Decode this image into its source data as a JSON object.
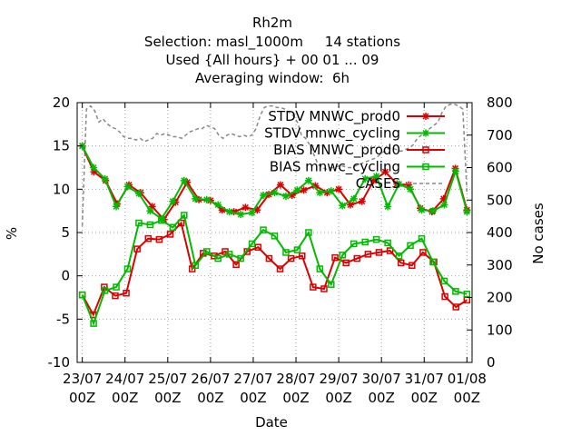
{
  "chart_data": {
    "type": "line",
    "title": "Rh2m",
    "subtitle_lines": [
      "Selection: masl_1000m     14 stations",
      "Used {All hours} + 00 01 ... 09",
      "Averaging window:  6h"
    ],
    "xlabel": "Date",
    "ylabel": "%",
    "y2label": "No cases",
    "ylim": [
      -10,
      20
    ],
    "y2lim": [
      0,
      800
    ],
    "yticks": [
      -10,
      -5,
      0,
      5,
      10,
      15,
      20
    ],
    "y2ticks": [
      0,
      100,
      200,
      300,
      400,
      500,
      600,
      700,
      800
    ],
    "xlim": [
      -0.12,
      9.12
    ],
    "xticks": [
      {
        "line1": "23/07",
        "line2": "00Z"
      },
      {
        "line1": "24/07",
        "line2": "00Z"
      },
      {
        "line1": "25/07",
        "line2": "00Z"
      },
      {
        "line1": "26/07",
        "line2": "00Z"
      },
      {
        "line1": "27/07",
        "line2": "00Z"
      },
      {
        "line1": "28/07",
        "line2": "00Z"
      },
      {
        "line1": "29/07",
        "line2": "00Z"
      },
      {
        "line1": "30/07",
        "line2": "00Z"
      },
      {
        "line1": "31/07",
        "line2": "00Z"
      },
      {
        "line1": "01/08",
        "line2": "00Z"
      }
    ],
    "grid": true,
    "legend_position": "top-right",
    "series": [
      {
        "name": "STDV MNWC_prod0",
        "color": "#dd0000",
        "marker": "star",
        "axis": "y1",
        "values": [
          15.0,
          12.0,
          11.0,
          8.3,
          10.5,
          9.6,
          8.0,
          6.5,
          8.5,
          10.8,
          8.8,
          8.7,
          7.6,
          7.4,
          7.9,
          7.6,
          9.4,
          10.5,
          9.3,
          9.9,
          10.4,
          9.6,
          10.0,
          8.2,
          8.6,
          11.0,
          12.0,
          10.6,
          10.5,
          7.8,
          7.4,
          8.9,
          12.4,
          7.6
        ]
      },
      {
        "name": "STDV mnwc_cycling",
        "color": "#00bb00",
        "marker": "star",
        "axis": "y1",
        "values": [
          15.0,
          12.5,
          11.2,
          8.0,
          10.3,
          9.5,
          7.5,
          6.6,
          8.6,
          11.0,
          8.9,
          8.8,
          8.2,
          7.4,
          7.1,
          7.3,
          9.3,
          9.6,
          9.2,
          9.9,
          11.0,
          9.6,
          9.8,
          8.1,
          8.9,
          11.2,
          11.5,
          8.0,
          10.6,
          10.0,
          7.6,
          7.5,
          8.2,
          12.1,
          7.4
        ]
      },
      {
        "name": "BIAS MNWC_prod0",
        "color": "#dd0000",
        "marker": "square",
        "axis": "y1",
        "values": [
          -2.2,
          -4.5,
          -1.3,
          -2.3,
          -2.0,
          3.1,
          4.3,
          4.2,
          4.8,
          6.1,
          0.8,
          2.6,
          2.3,
          2.8,
          1.3,
          2.8,
          3.3,
          2.0,
          0.8,
          2.0,
          2.3,
          -1.3,
          -1.5,
          2.1,
          1.5,
          2.0,
          2.5,
          2.7,
          2.9,
          1.5,
          1.2,
          2.7,
          1.6,
          -2.4,
          -3.6,
          -2.8
        ]
      },
      {
        "name": "BIAS mnwc_cycling",
        "color": "#00bb00",
        "marker": "square",
        "axis": "y1",
        "values": [
          -2.2,
          -5.5,
          -1.7,
          -1.3,
          0.8,
          6.1,
          5.9,
          6.4,
          5.6,
          7.0,
          1.2,
          2.8,
          2.0,
          2.5,
          2.0,
          3.7,
          5.3,
          4.6,
          2.7,
          3.0,
          5.0,
          0.8,
          -1.0,
          2.4,
          3.7,
          3.9,
          4.2,
          3.8,
          2.3,
          3.5,
          4.3,
          1.6,
          -0.6,
          -1.8,
          -2.1
        ]
      },
      {
        "name": "CASES",
        "color": "#888888",
        "marker": "none",
        "dashed": true,
        "axis": "y2",
        "values": [
          420,
          780,
          790,
          775,
          740,
          750,
          735,
          725,
          720,
          710,
          695,
          690,
          690,
          685,
          690,
          680,
          685,
          690,
          705,
          700,
          705,
          700,
          695,
          695,
          690,
          700,
          710,
          715,
          720,
          720,
          730,
          725,
          720,
          700,
          690,
          700,
          705,
          700,
          695,
          700,
          695,
          700,
          720,
          760,
          785,
          790,
          790,
          785,
          785,
          780,
          770,
          760,
          740,
          700,
          690,
          670,
          640,
          610,
          600,
          595,
          600,
          600,
          605,
          605,
          600,
          600,
          605,
          610,
          615,
          620,
          625,
          630,
          640,
          650,
          660,
          660,
          655,
          650,
          655,
          660,
          670,
          690,
          700,
          710,
          720,
          730,
          740,
          770,
          790,
          795,
          795,
          790,
          780,
          520
        ]
      }
    ]
  }
}
